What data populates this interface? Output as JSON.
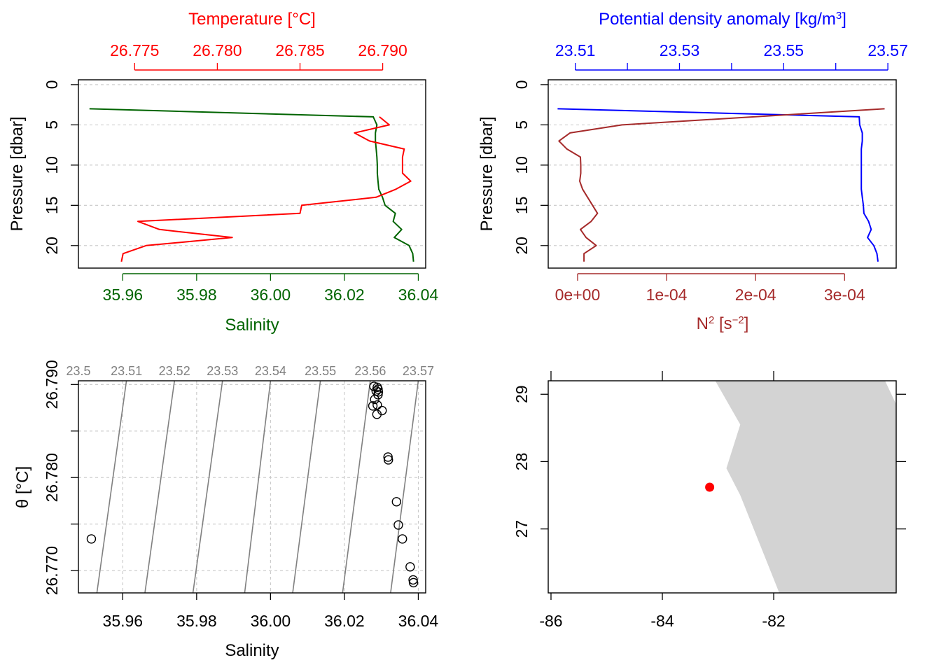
{
  "colors": {
    "temperature": "#ff0000",
    "salinity": "#006400",
    "density": "#0000ff",
    "n2": "#a52a2a",
    "isopycnal": "#808080",
    "land": "#d3d3d3",
    "station": "#ff0000",
    "grid": "#c8c8c8"
  },
  "chart_data": [
    {
      "id": "salinity-temperature-profile",
      "type": "line",
      "ylabel": "Pressure [dbar]",
      "ylim": [
        22.8,
        -0.6
      ],
      "yticks": [
        0,
        5,
        10,
        15,
        20
      ],
      "grid": true,
      "xaxis_bottom": {
        "label": "Salinity",
        "range": [
          35.948,
          36.042
        ],
        "ticks": [
          35.96,
          35.98,
          36.0,
          36.02,
          36.04
        ],
        "tick_labels": [
          "35.96",
          "35.98",
          "36.00",
          "36.02",
          "36.04"
        ]
      },
      "xaxis_top": {
        "label": "Temperature [°C]",
        "range": [
          26.7716,
          26.7926
        ],
        "ticks": [
          26.775,
          26.78,
          26.785,
          26.79
        ],
        "tick_labels": [
          "26.775",
          "26.780",
          "26.785",
          "26.790"
        ]
      },
      "series": [
        {
          "name": "Salinity",
          "axis": "bottom",
          "color_key": "salinity",
          "pressure": [
            3,
            4,
            5,
            6,
            7,
            8,
            9,
            10,
            11,
            12,
            13,
            14,
            15,
            16,
            17,
            18,
            19,
            20,
            21,
            22
          ],
          "values": [
            35.951,
            36.0278,
            36.0288,
            36.0284,
            36.0284,
            36.0286,
            36.0288,
            36.0289,
            36.0289,
            36.0291,
            36.0293,
            36.0303,
            36.031,
            36.0338,
            36.0332,
            36.0355,
            36.0335,
            36.0375,
            36.0385,
            36.0387
          ]
        },
        {
          "name": "Temperature",
          "axis": "top",
          "color_key": "temperature",
          "pressure": [
            4,
            5,
            6,
            7,
            8,
            9,
            10,
            11,
            12,
            13,
            14,
            15,
            16,
            17,
            18,
            19,
            20,
            21,
            22
          ],
          "values": [
            26.7898,
            26.7904,
            26.7883,
            26.7892,
            26.7913,
            26.7912,
            26.7912,
            26.7912,
            26.7917,
            26.7908,
            26.7896,
            26.7851,
            26.785,
            26.7752,
            26.7765,
            26.7809,
            26.7757,
            26.7743,
            26.7742
          ]
        }
      ]
    },
    {
      "id": "density-n2-profile",
      "type": "line",
      "ylabel": "Pressure [dbar]",
      "ylim": [
        22.8,
        -0.6
      ],
      "yticks": [
        0,
        5,
        10,
        15,
        20
      ],
      "grid": true,
      "xaxis_top": {
        "label": "Potential density anomaly [kg/m³]",
        "range": [
          23.5048,
          23.5716
        ],
        "ticks": [
          23.51,
          23.52,
          23.53,
          23.54,
          23.55,
          23.56,
          23.57
        ],
        "tick_labels": [
          "23.51",
          "",
          "23.53",
          "",
          "23.55",
          "",
          "23.57"
        ]
      },
      "xaxis_bottom": {
        "label": "N² [s⁻²]",
        "range": [
          -3.3e-05,
          0.000358
        ],
        "ticks": [
          0,
          0.0001,
          0.0002,
          0.0003
        ],
        "tick_labels": [
          "0e+00",
          "1e-04",
          "2e-04",
          "3e-04"
        ]
      },
      "series": [
        {
          "name": "Potential density anomaly",
          "axis": "top",
          "color_key": "density",
          "pressure": [
            3,
            4,
            5,
            6,
            7,
            8,
            9,
            10,
            11,
            12,
            13,
            14,
            15,
            16,
            17,
            18,
            19,
            20,
            21,
            22
          ],
          "values": [
            23.5066,
            23.5645,
            23.5646,
            23.5651,
            23.5651,
            23.5649,
            23.5649,
            23.5649,
            23.5649,
            23.5649,
            23.5649,
            23.5651,
            23.5653,
            23.5654,
            23.5663,
            23.5668,
            23.5661,
            23.5673,
            23.5679,
            23.5681
          ]
        },
        {
          "name": "N2",
          "axis": "bottom",
          "color_key": "n2",
          "pressure": [
            3,
            5,
            6,
            7,
            8,
            9,
            10,
            11,
            12,
            13,
            14,
            15,
            16,
            17,
            18,
            19,
            20,
            21,
            22
          ],
          "values": [
            0.000345,
            5e-05,
            -8.5e-06,
            -2.1e-05,
            -1.2e-05,
            3.2e-06,
            3.6e-06,
            3.6e-06,
            2.4e-06,
            5.6e-06,
            1.12e-05,
            1.68e-05,
            2.24e-05,
            1.52e-05,
            3.2e-06,
            9.6e-06,
            2.1e-05,
            7.2e-06,
            7.2e-06
          ]
        }
      ]
    },
    {
      "id": "ts-diagram",
      "type": "scatter",
      "xlabel": "Salinity",
      "ylabel": "θ [°C]",
      "xlim": [
        35.948,
        36.042
      ],
      "ylim": [
        26.7676,
        26.7904
      ],
      "xticks": [
        35.96,
        35.98,
        36.0,
        36.02,
        36.04
      ],
      "xtick_labels": [
        "35.96",
        "35.98",
        "36.00",
        "36.02",
        "36.04"
      ],
      "yticks": [
        26.77,
        26.775,
        26.78,
        26.785,
        26.79
      ],
      "ytick_labels": [
        "26.770",
        "",
        "26.780",
        "",
        "26.790"
      ],
      "grid": true,
      "isopycnals": {
        "labels": [
          "23.5",
          "23.51",
          "23.52",
          "23.53",
          "23.54",
          "23.55",
          "23.56",
          "23.57"
        ],
        "sigma_at_top": [
          23.5,
          23.51,
          23.52,
          23.53,
          23.54,
          23.55,
          23.56,
          23.57
        ],
        "salinity_at_top": [
          35.948,
          35.961,
          35.974,
          35.987,
          36.0,
          36.0135,
          36.027,
          36.04
        ],
        "salinity_at_bottom": [
          35.934,
          35.953,
          35.966,
          35.979,
          35.993,
          36.006,
          36.0195,
          36.0325
        ]
      },
      "points_salinity": [
        35.9515,
        36.028,
        36.0289,
        36.0291,
        36.0292,
        36.0286,
        36.0291,
        36.0282,
        36.0289,
        36.0277,
        36.0302,
        36.0288,
        36.0319,
        36.0318,
        36.0341,
        36.0346,
        36.0357,
        36.0378,
        36.0386,
        36.0387
      ],
      "points_theta": [
        26.7734,
        26.7898,
        26.7897,
        26.7895,
        26.7892,
        26.7893,
        26.7889,
        26.7884,
        26.7878,
        26.7877,
        26.7872,
        26.7868,
        26.7819,
        26.7822,
        26.7774,
        26.7749,
        26.7734,
        26.7704,
        26.769,
        26.7687
      ]
    },
    {
      "id": "station-map",
      "type": "scatter",
      "xlim": [
        -86.05,
        -79.8
      ],
      "ylim": [
        26.05,
        29.2
      ],
      "xticks": [
        -86,
        -84,
        -82
      ],
      "xtick_labels": [
        "-86",
        "-84",
        "-82"
      ],
      "yticks": [
        27,
        28,
        29
      ],
      "ytick_labels": [
        "27",
        "28",
        "29"
      ],
      "land": [
        [
          -83.05,
          29.2
        ],
        [
          -80.0,
          29.2
        ],
        [
          -79.6,
          28.5
        ],
        [
          -79.6,
          27.0
        ],
        [
          -79.75,
          26.05
        ],
        [
          -81.9,
          26.05
        ],
        [
          -82.6,
          27.5
        ],
        [
          -82.85,
          27.9
        ],
        [
          -82.6,
          28.55
        ]
      ],
      "station": {
        "lon": -83.15,
        "lat": 27.62
      }
    }
  ]
}
